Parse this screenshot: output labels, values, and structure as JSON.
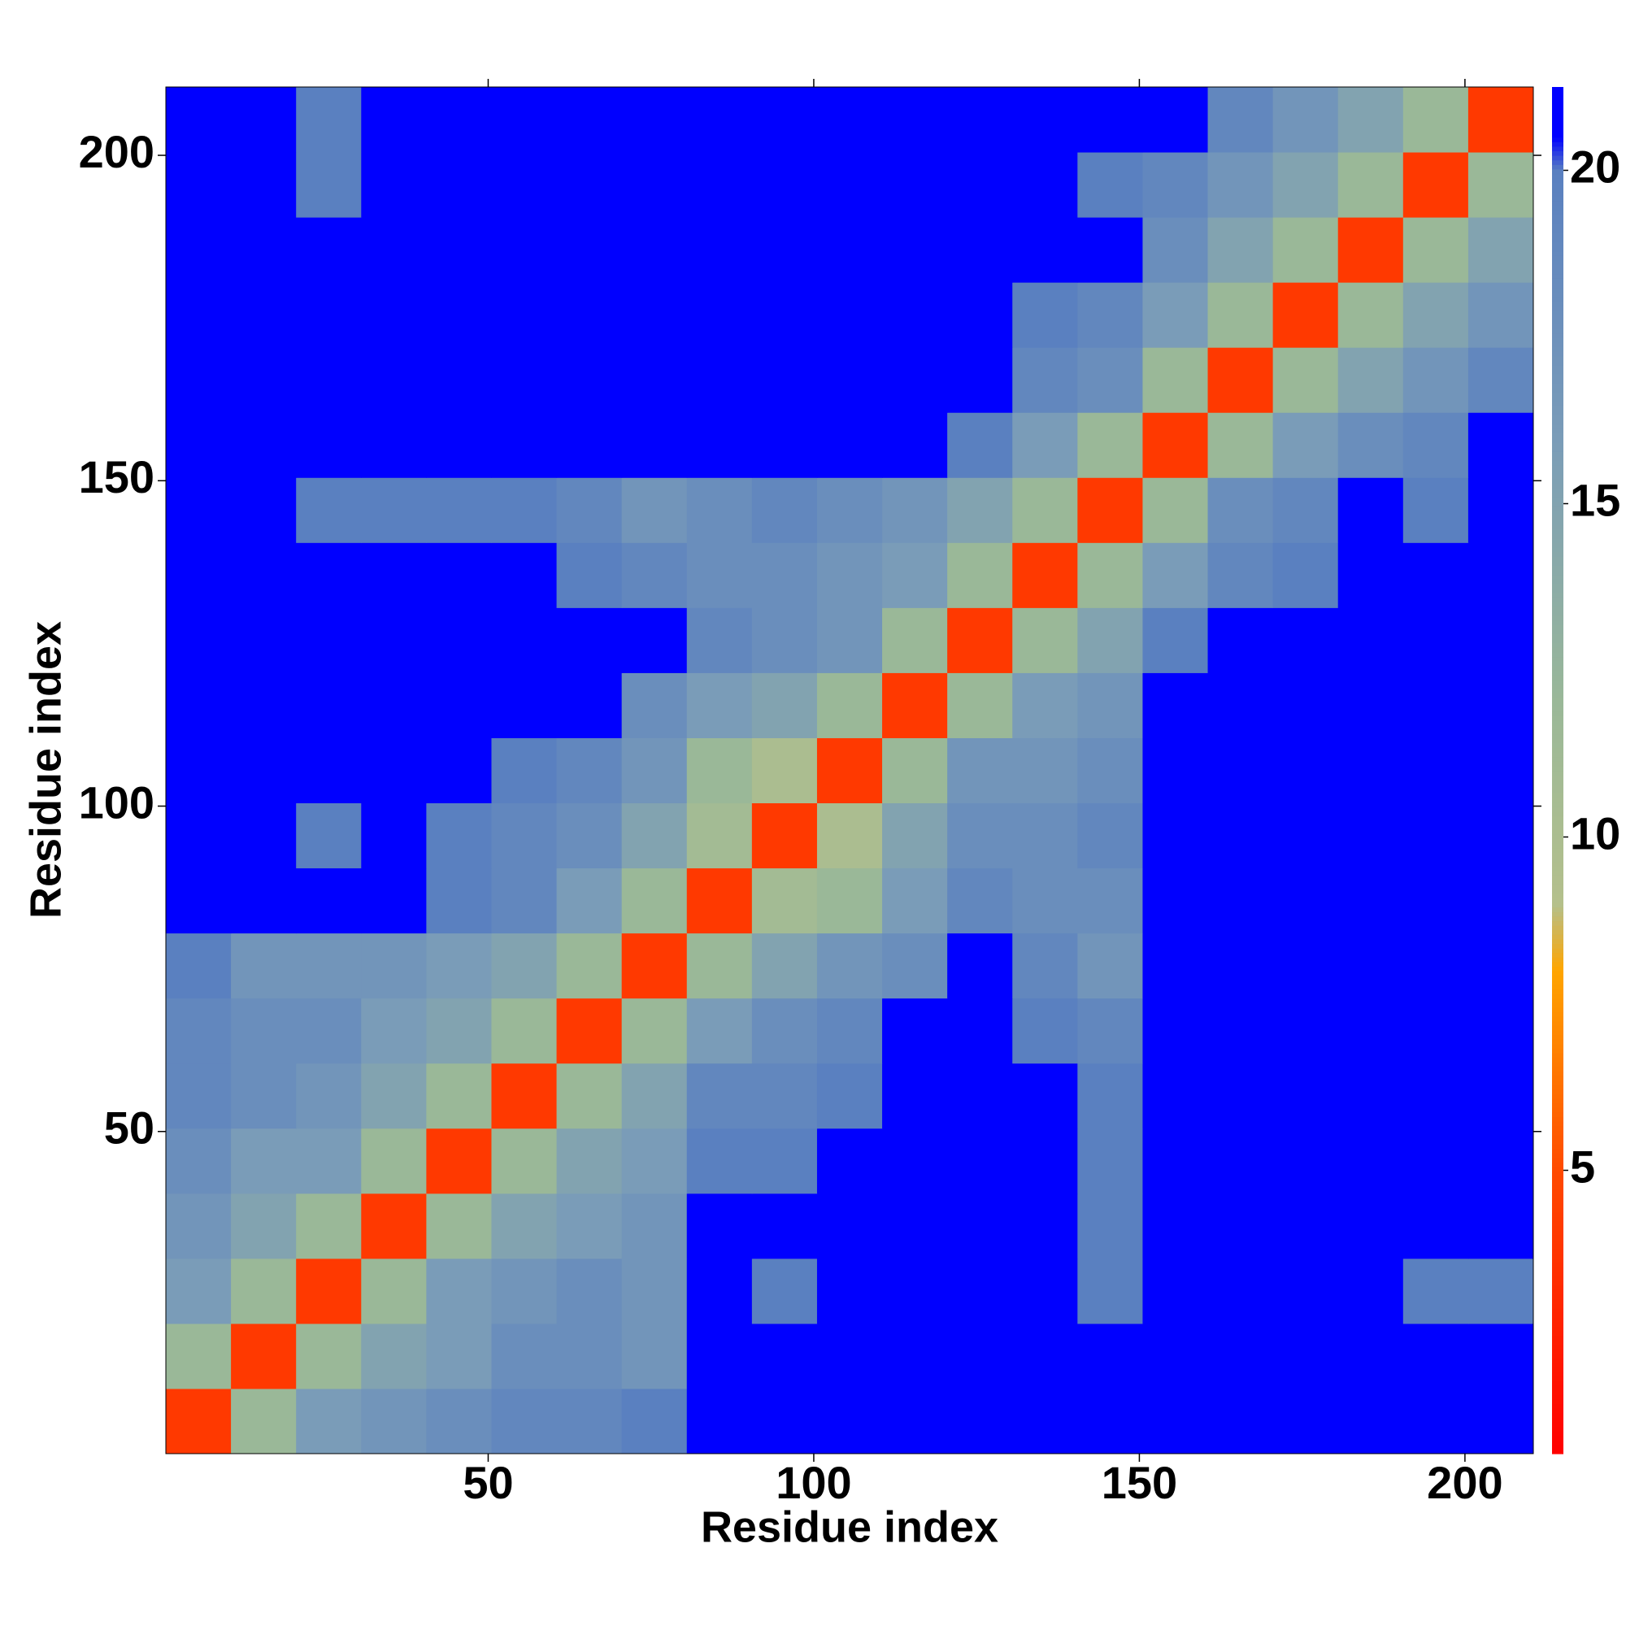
{
  "chart_data": {
    "type": "heatmap",
    "xlabel": "Residue index",
    "ylabel": "Residue index",
    "x_bins": [
      0.5,
      10.5,
      20.5,
      30.5,
      40.5,
      50.5,
      60.5,
      70.5,
      80.5,
      90.5,
      100.5,
      110.5,
      120.5,
      130.5,
      140.5,
      150.5,
      160.5,
      170.5,
      180.5,
      190.5,
      200.5,
      210.5
    ],
    "y_bins": [
      0.5,
      10.5,
      20.5,
      30.5,
      40.5,
      50.5,
      60.5,
      70.5,
      80.5,
      90.5,
      100.5,
      110.5,
      120.5,
      130.5,
      140.5,
      150.5,
      160.5,
      170.5,
      180.5,
      190.5,
      200.5,
      210.5
    ],
    "values": [
      [
        4,
        12,
        16,
        17,
        18,
        19,
        19,
        20,
        21,
        21,
        21,
        21,
        21,
        21,
        21,
        21,
        21,
        21,
        21,
        21,
        21
      ],
      [
        12,
        4,
        12,
        15,
        16,
        18,
        18,
        17,
        21,
        21,
        21,
        21,
        21,
        21,
        21,
        21,
        21,
        21,
        21,
        21,
        21
      ],
      [
        16,
        12,
        4,
        12,
        16,
        17,
        18,
        17,
        21,
        20,
        21,
        21,
        21,
        21,
        20,
        21,
        21,
        21,
        21,
        20,
        20
      ],
      [
        17,
        15,
        12,
        4,
        12,
        15,
        16,
        17,
        21,
        21,
        21,
        21,
        21,
        21,
        20,
        21,
        21,
        21,
        21,
        21,
        21
      ],
      [
        18,
        16,
        16,
        12,
        4,
        12,
        15,
        16,
        20,
        20,
        21,
        21,
        21,
        21,
        20,
        21,
        21,
        21,
        21,
        21,
        21
      ],
      [
        19,
        18,
        17,
        15,
        12,
        4,
        12,
        15,
        19,
        19,
        20,
        21,
        21,
        21,
        20,
        21,
        21,
        21,
        21,
        21,
        21
      ],
      [
        19,
        18,
        18,
        16,
        15,
        12,
        4,
        12,
        16,
        18,
        19,
        21,
        21,
        20,
        19,
        21,
        21,
        21,
        21,
        21,
        21
      ],
      [
        20,
        17,
        17,
        17,
        16,
        15,
        12,
        4,
        12,
        15,
        17,
        18,
        21,
        19,
        17,
        21,
        21,
        21,
        21,
        21,
        21
      ],
      [
        21,
        21,
        21,
        21,
        20,
        19,
        16,
        12,
        4,
        11,
        12,
        16,
        19,
        18,
        18,
        21,
        21,
        21,
        21,
        21,
        21
      ],
      [
        21,
        21,
        20,
        21,
        20,
        19,
        18,
        15,
        11,
        4,
        10,
        15,
        18,
        18,
        19,
        21,
        21,
        21,
        21,
        21,
        21
      ],
      [
        21,
        21,
        21,
        21,
        21,
        20,
        19,
        17,
        12,
        10,
        4,
        12,
        17,
        17,
        18,
        21,
        21,
        21,
        21,
        21,
        21
      ],
      [
        21,
        21,
        21,
        21,
        21,
        21,
        21,
        18,
        16,
        15,
        12,
        4,
        12,
        16,
        17,
        21,
        21,
        21,
        21,
        21,
        21
      ],
      [
        21,
        21,
        21,
        21,
        21,
        21,
        21,
        21,
        19,
        18,
        17,
        12,
        4,
        12,
        15,
        20,
        21,
        21,
        21,
        21,
        21
      ],
      [
        21,
        21,
        21,
        21,
        21,
        21,
        20,
        19,
        18,
        18,
        17,
        16,
        12,
        4,
        12,
        16,
        19,
        20,
        21,
        21,
        21
      ],
      [
        21,
        21,
        20,
        20,
        20,
        20,
        19,
        17,
        18,
        19,
        18,
        17,
        15,
        12,
        4,
        12,
        18,
        19,
        21,
        20,
        21
      ],
      [
        21,
        21,
        21,
        21,
        21,
        21,
        21,
        21,
        21,
        21,
        21,
        21,
        20,
        16,
        12,
        4,
        12,
        16,
        18,
        19,
        21
      ],
      [
        21,
        21,
        21,
        21,
        21,
        21,
        21,
        21,
        21,
        21,
        21,
        21,
        21,
        19,
        18,
        12,
        4,
        12,
        15,
        17,
        19
      ],
      [
        21,
        21,
        21,
        21,
        21,
        21,
        21,
        21,
        21,
        21,
        21,
        21,
        21,
        20,
        19,
        16,
        12,
        4,
        12,
        15,
        17
      ],
      [
        21,
        21,
        21,
        21,
        21,
        21,
        21,
        21,
        21,
        21,
        21,
        21,
        21,
        21,
        21,
        18,
        15,
        12,
        4,
        12,
        15
      ],
      [
        21,
        21,
        20,
        21,
        21,
        21,
        21,
        21,
        21,
        21,
        21,
        21,
        21,
        21,
        20,
        19,
        17,
        15,
        12,
        4,
        12
      ],
      [
        21,
        21,
        20,
        21,
        21,
        21,
        21,
        21,
        21,
        21,
        21,
        21,
        21,
        21,
        21,
        21,
        19,
        17,
        15,
        12,
        4
      ]
    ],
    "xlim": [
      0.5,
      210.5
    ],
    "ylim": [
      0.5,
      210.5
    ],
    "xticks": [
      50,
      100,
      150,
      200
    ],
    "yticks": [
      50,
      100,
      150,
      200
    ],
    "clim": [
      0.75,
      21.25
    ],
    "cticks": [
      5,
      10,
      15,
      20
    ],
    "colorscale": [
      [
        0.75,
        "#ff0000"
      ],
      [
        5,
        "#ff4a00"
      ],
      [
        8,
        "#ffa500"
      ],
      [
        9,
        "#b4c08c"
      ],
      [
        12,
        "#9ab898"
      ],
      [
        16,
        "#7a9cb8"
      ],
      [
        20,
        "#5a80c0"
      ],
      [
        20.5,
        "#0000ff"
      ],
      [
        21.25,
        "#0000ff"
      ]
    ]
  }
}
